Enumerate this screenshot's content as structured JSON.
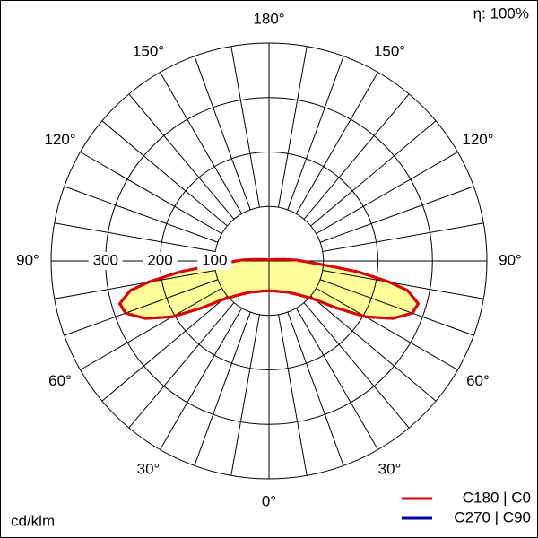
{
  "chart_data": {
    "type": "polar",
    "efficiency_label": "η: 100%",
    "unit_label": "cd/klm",
    "x": [
      0,
      10,
      20,
      30,
      40,
      45,
      50,
      55,
      60,
      65,
      70,
      74,
      78,
      80,
      83,
      85,
      87,
      90,
      92,
      95,
      100,
      120,
      150,
      180
    ],
    "series": [
      {
        "name": "C270 | C90",
        "color": "#0000a0",
        "values": [
          55,
          56,
          60,
          66,
          80,
          92,
          110,
          150,
          205,
          250,
          280,
          285,
          260,
          225,
          165,
          115,
          85,
          60,
          50,
          30,
          15,
          5,
          2,
          1
        ]
      },
      {
        "name": "C180 | C0",
        "color": "#e00000",
        "values": [
          55,
          56,
          60,
          66,
          80,
          92,
          110,
          150,
          205,
          250,
          280,
          285,
          260,
          225,
          165,
          115,
          85,
          60,
          50,
          30,
          15,
          5,
          2,
          1
        ]
      }
    ],
    "fill_color": "#ffff99",
    "rlim": [
      0,
      400
    ],
    "rticks": [
      100,
      200,
      300,
      400
    ],
    "rtick_labels_shown": 3,
    "angle_grid_step": 10,
    "angle_ticks": [
      {
        "value": 0,
        "label": "0°"
      },
      {
        "value": 30,
        "label": "30°"
      },
      {
        "value": 60,
        "label": "60°"
      },
      {
        "value": 90,
        "label": "90°"
      },
      {
        "value": 120,
        "label": "120°"
      },
      {
        "value": 150,
        "label": "150°"
      },
      {
        "value": 180,
        "label": "180°"
      }
    ]
  }
}
